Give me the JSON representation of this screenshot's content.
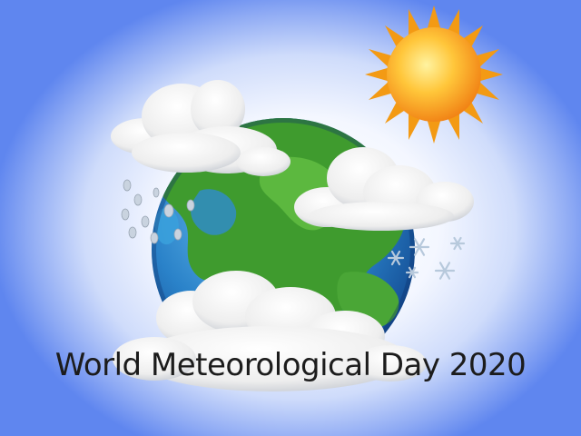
{
  "caption": "World Meteorological Day 2020",
  "colors": {
    "sky_edge": "#5f86ef",
    "sky_center": "#ffffff",
    "ocean": "#2a82c9",
    "land": "#3f9b2e",
    "sun": "#f7a11a",
    "cloud": "#f2f2f2",
    "text": "#1c1c1c"
  },
  "icons": [
    "globe-icon",
    "sun-icon",
    "cloud-icon",
    "raindrop-icon",
    "snowflake-icon"
  ]
}
